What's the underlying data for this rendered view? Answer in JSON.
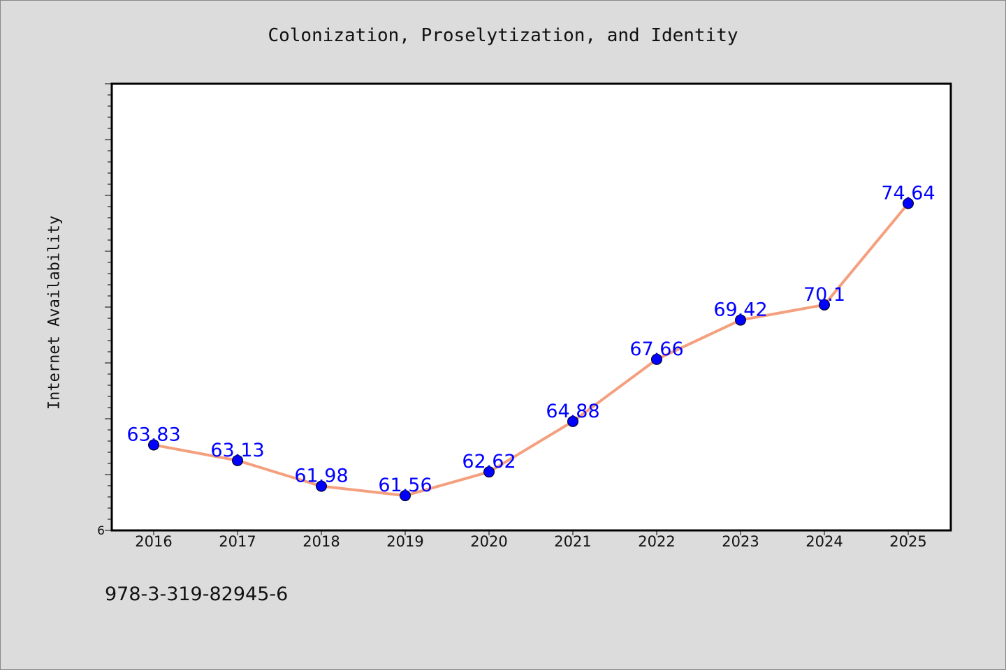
{
  "chart_data": {
    "type": "line",
    "title": "Colonization, Proselytization, and Identity",
    "xlabel": "",
    "ylabel": "Internet Availability",
    "x": [
      "2016",
      "2017",
      "2018",
      "2019",
      "2020",
      "2021",
      "2022",
      "2023",
      "2024",
      "2025"
    ],
    "series": [
      {
        "values": [
          63.83,
          63.13,
          61.98,
          61.56,
          62.62,
          64.88,
          67.66,
          69.42,
          70.1,
          74.64
        ],
        "data_labels": [
          "63.83",
          "63.13",
          "61.98",
          "61.56",
          "62.62",
          "64.88",
          "67.66",
          "69.42",
          "70.1",
          "74.64"
        ]
      }
    ],
    "ylim": [
      60,
      80
    ],
    "y_tick_labels_visible": [
      "6"
    ],
    "grid": false,
    "line_color": "#f4a07e",
    "marker_color": "#0000ff",
    "label_color": "#0000ff"
  },
  "footer_text": "978-3-319-82945-6"
}
